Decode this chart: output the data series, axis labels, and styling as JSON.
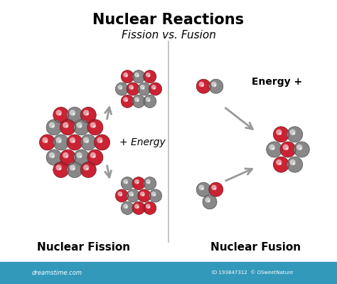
{
  "title": "Nuclear Reactions",
  "subtitle": "Fission vs. Fusion",
  "label_fission": "Nuclear Fission",
  "label_fusion": "Nuclear Fusion",
  "energy_fission": "+ Energy",
  "energy_fusion": "Energy +",
  "bg_color": "#ffffff",
  "red_color": "#cc2233",
  "red_dark": "#991122",
  "gray_color": "#888888",
  "gray_light": "#cccccc",
  "gray_dark": "#444444",
  "arrow_color": "#999999",
  "title_fontsize": 15,
  "subtitle_fontsize": 11,
  "label_fontsize": 11,
  "energy_fontsize": 10,
  "watermark_color": "#3399bb",
  "watermark_text": "dreamstime.com",
  "id_text": "ID 193847312  © OSweetNature"
}
